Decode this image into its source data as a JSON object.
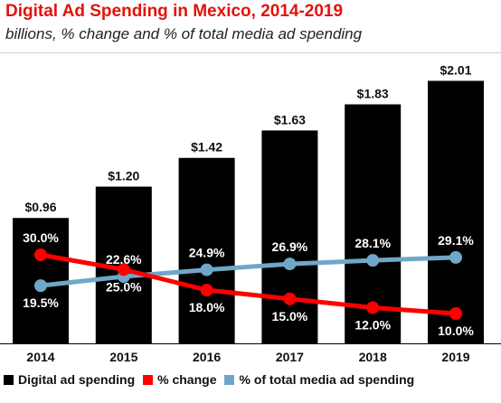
{
  "colors": {
    "bars": "#000000",
    "change": "#ff0000",
    "share": "#6fa7c8",
    "title": "#e3120b"
  },
  "chart_data": {
    "type": "bar",
    "title": "Digital Ad Spending in Mexico, 2014-2019",
    "subtitle": "billions, % change and % of total media ad spending",
    "categories": [
      "2014",
      "2015",
      "2016",
      "2017",
      "2018",
      "2019"
    ],
    "bar_labels": [
      "$0.96",
      "$1.20",
      "$1.42",
      "$1.63",
      "$1.83",
      "$2.01"
    ],
    "change_labels": [
      "30.0%",
      "25.0%",
      "18.0%",
      "15.0%",
      "12.0%",
      "10.0%"
    ],
    "share_labels": [
      "19.5%",
      "22.6%",
      "24.9%",
      "26.9%",
      "28.1%",
      "29.1%"
    ],
    "series": [
      {
        "name": "Digital ad spending",
        "type": "bar",
        "values": [
          0.96,
          1.2,
          1.42,
          1.63,
          1.83,
          2.01
        ]
      },
      {
        "name": "% change",
        "type": "line",
        "values": [
          30.0,
          25.0,
          18.0,
          15.0,
          12.0,
          10.0
        ]
      },
      {
        "name": "% of total media ad spending",
        "type": "line",
        "values": [
          19.5,
          22.6,
          24.9,
          26.9,
          28.1,
          29.1
        ]
      }
    ],
    "ylim": [
      0,
      2.2
    ],
    "grid": false,
    "legend_placement": "bottom"
  }
}
